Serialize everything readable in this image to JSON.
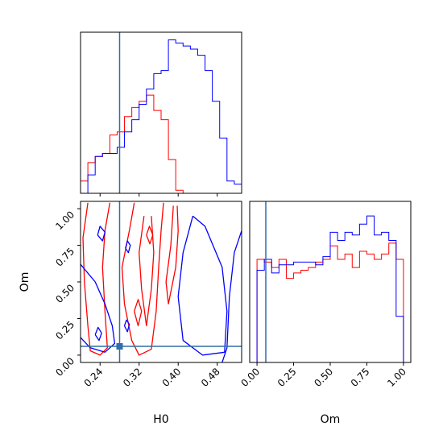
{
  "chart_data": [
    {
      "type": "histogram",
      "panel": "H0 marginal",
      "xlim": [
        0.2,
        0.53
      ],
      "truth_x": 0.28,
      "bins_x": [
        0.2,
        0.215,
        0.23,
        0.245,
        0.26,
        0.275,
        0.29,
        0.305,
        0.32,
        0.335,
        0.35,
        0.365,
        0.38,
        0.395,
        0.41,
        0.425,
        0.44,
        0.455,
        0.47,
        0.485,
        0.5,
        0.515,
        0.53
      ],
      "series": [
        {
          "color": "#ff0000",
          "values": [
            4,
            10,
            12,
            13,
            19,
            20,
            25,
            28,
            30,
            32,
            27,
            24,
            11,
            1,
            0,
            0,
            0,
            0,
            0,
            0,
            0,
            0
          ]
        },
        {
          "color": "#0000ff",
          "values": [
            0,
            6,
            12,
            13,
            13,
            15,
            20,
            24,
            29,
            34,
            39,
            40,
            50,
            49,
            48,
            47,
            45,
            40,
            30,
            18,
            4,
            3
          ]
        }
      ]
    },
    {
      "type": "contour",
      "panel": "H0 vs Om",
      "xlabel": "H0",
      "ylabel": "Om",
      "xlim": [
        0.2,
        0.53
      ],
      "ylim": [
        -0.05,
        1.05
      ],
      "xticks": [
        "0.24",
        "0.32",
        "0.40",
        "0.48"
      ],
      "xtick_values": [
        0.24,
        0.32,
        0.4,
        0.48
      ],
      "yticks": [
        "0.00",
        "0.25",
        "0.50",
        "0.75",
        "1.00"
      ],
      "ytick_values": [
        0.0,
        0.25,
        0.5,
        0.75,
        1.0
      ],
      "truth": [
        0.28,
        0.06
      ],
      "series": [
        {
          "color": "#ff0000",
          "contours": [
            [
              [
                0.215,
                1.04
              ],
              [
                0.205,
                0.8
              ],
              [
                0.208,
                0.5
              ],
              [
                0.215,
                0.2
              ],
              [
                0.22,
                0.03
              ],
              [
                0.24,
                0.0
              ],
              [
                0.255,
                0.05
              ],
              [
                0.25,
                0.3
              ],
              [
                0.245,
                0.6
              ],
              [
                0.25,
                0.85
              ],
              [
                0.26,
                1.04
              ]
            ],
            [
              [
                0.31,
                1.04
              ],
              [
                0.3,
                0.85
              ],
              [
                0.285,
                0.6
              ],
              [
                0.29,
                0.35
              ],
              [
                0.305,
                0.1
              ],
              [
                0.32,
                0.0
              ],
              [
                0.345,
                0.04
              ],
              [
                0.355,
                0.3
              ],
              [
                0.36,
                0.6
              ],
              [
                0.365,
                0.85
              ],
              [
                0.37,
                1.04
              ]
            ],
            [
              [
                0.33,
                0.95
              ],
              [
                0.32,
                0.7
              ],
              [
                0.325,
                0.45
              ],
              [
                0.335,
                0.2
              ],
              [
                0.345,
                0.45
              ],
              [
                0.35,
                0.7
              ],
              [
                0.345,
                0.95
              ]
            ],
            [
              [
                0.39,
                1.02
              ],
              [
                0.385,
                0.75
              ],
              [
                0.375,
                0.5
              ],
              [
                0.38,
                0.35
              ],
              [
                0.395,
                0.6
              ],
              [
                0.4,
                0.85
              ],
              [
                0.398,
                1.02
              ]
            ],
            [
              [
                0.31,
                0.3
              ],
              [
                0.318,
                0.2
              ],
              [
                0.325,
                0.3
              ],
              [
                0.318,
                0.38
              ],
              [
                0.31,
                0.3
              ]
            ],
            [
              [
                0.335,
                0.82
              ],
              [
                0.342,
                0.76
              ],
              [
                0.348,
                0.82
              ],
              [
                0.341,
                0.88
              ],
              [
                0.335,
                0.82
              ]
            ]
          ]
        },
        {
          "color": "#0000ff",
          "contours": [
            [
              [
                0.2,
                0.62
              ],
              [
                0.23,
                0.5
              ],
              [
                0.25,
                0.35
              ],
              [
                0.265,
                0.2
              ],
              [
                0.27,
                0.08
              ],
              [
                0.25,
                0.02
              ],
              [
                0.22,
                0.05
              ],
              [
                0.2,
                0.12
              ]
            ],
            [
              [
                0.43,
                0.95
              ],
              [
                0.455,
                0.88
              ],
              [
                0.49,
                0.6
              ],
              [
                0.5,
                0.3
              ],
              [
                0.495,
                0.02
              ],
              [
                0.45,
                0.0
              ],
              [
                0.41,
                0.1
              ],
              [
                0.4,
                0.4
              ],
              [
                0.41,
                0.7
              ],
              [
                0.43,
                0.95
              ]
            ],
            [
              [
                0.53,
                0.85
              ],
              [
                0.515,
                0.7
              ],
              [
                0.505,
                0.4
              ],
              [
                0.5,
                0.05
              ],
              [
                0.49,
                -0.05
              ]
            ],
            [
              [
                0.235,
                0.82
              ],
              [
                0.245,
                0.78
              ],
              [
                0.25,
                0.84
              ],
              [
                0.24,
                0.88
              ],
              [
                0.235,
                0.82
              ]
            ],
            [
              [
                0.292,
                0.73
              ],
              [
                0.298,
                0.7
              ],
              [
                0.302,
                0.75
              ],
              [
                0.296,
                0.78
              ],
              [
                0.292,
                0.73
              ]
            ],
            [
              [
                0.29,
                0.2
              ],
              [
                0.296,
                0.16
              ],
              [
                0.3,
                0.21
              ],
              [
                0.294,
                0.24
              ],
              [
                0.29,
                0.2
              ]
            ],
            [
              [
                0.23,
                0.14
              ],
              [
                0.238,
                0.1
              ],
              [
                0.243,
                0.15
              ],
              [
                0.236,
                0.19
              ],
              [
                0.23,
                0.14
              ]
            ]
          ]
        }
      ]
    },
    {
      "type": "histogram",
      "panel": "Om marginal",
      "xlabel": "Om",
      "xlim": [
        -0.05,
        1.05
      ],
      "xticks": [
        "0.00",
        "0.25",
        "0.50",
        "0.75",
        "1.00"
      ],
      "xtick_values": [
        0.0,
        0.25,
        0.5,
        0.75,
        1.0
      ],
      "truth_x": 0.06,
      "bins_x": [
        0.0,
        0.05,
        0.1,
        0.15,
        0.2,
        0.25,
        0.3,
        0.35,
        0.4,
        0.45,
        0.5,
        0.55,
        0.6,
        0.65,
        0.7,
        0.75,
        0.8,
        0.85,
        0.9,
        0.95,
        1.0
      ],
      "series": [
        {
          "color": "#ff0000",
          "values": [
            38,
            37,
            35,
            38,
            31,
            33,
            34,
            35,
            37,
            38,
            43,
            38,
            40,
            35,
            41,
            40,
            38,
            40,
            44,
            38
          ]
        },
        {
          "color": "#0000ff",
          "values": [
            34,
            38,
            33,
            36,
            36,
            37,
            37,
            37,
            36,
            39,
            48,
            45,
            48,
            47,
            51,
            54,
            47,
            48,
            45,
            17
          ]
        }
      ]
    }
  ]
}
